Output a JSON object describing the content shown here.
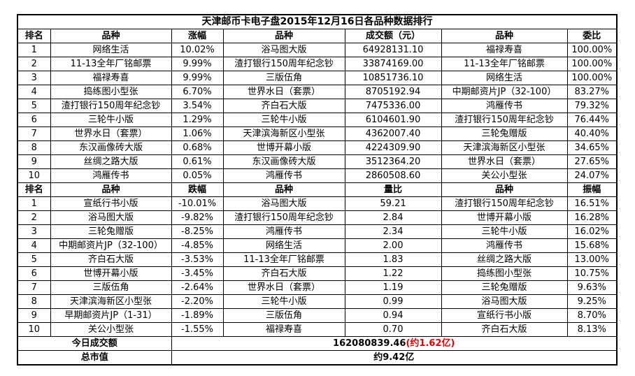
{
  "title": "天津邮币卡电子盘2015年12月16日各品种数据排行",
  "top": {
    "header": [
      "排名",
      "品种",
      "涨幅",
      "品种",
      "成交额（元）",
      "品种",
      "委比"
    ],
    "rows": [
      [
        "1",
        "网络生活",
        "10.02%",
        "浴马图大版",
        "64928131.10",
        "福禄寿喜",
        "100.00%"
      ],
      [
        "2",
        "11-13全年厂铭邮票",
        "9.99%",
        "渣打银行150周年纪念钞",
        "33874169.00",
        "11-13全年厂铭邮票",
        "100.00%"
      ],
      [
        "3",
        "福禄寿喜",
        "9.99%",
        "三版伍角",
        "10851736.10",
        "网络生活",
        "100.00%"
      ],
      [
        "4",
        "捣练图小型张",
        "6.70%",
        "世界水日（套票）",
        "8705192.94",
        "中期邮资片JP（32-100）",
        "83.27%"
      ],
      [
        "5",
        "渣打银行150周年纪念钞",
        "3.54%",
        "齐白石大版",
        "7475336.00",
        "鸿雁传书",
        "79.32%"
      ],
      [
        "6",
        "三轮牛小版",
        "1.29%",
        "三轮牛小版",
        "6104601.90",
        "渣打银行150周年纪念钞",
        "76.44%"
      ],
      [
        "7",
        "世界水日（套票）",
        "1.06%",
        "天津滨海新区小型张",
        "4362007.40",
        "三轮兔赠版",
        "40.40%"
      ],
      [
        "8",
        "东汉画像砖大版",
        "0.68%",
        "世博开幕小版",
        "4224309.90",
        "天津滨海新区小型张",
        "34.65%"
      ],
      [
        "9",
        "丝绸之路大版",
        "0.61%",
        "东汉画像砖大版",
        "3512364.20",
        "世界水日（套票）",
        "27.65%"
      ],
      [
        "10",
        "鸿雁传书",
        "0.05%",
        "鸿雁传书",
        "2860508.60",
        "关公小型张",
        "24.07%"
      ]
    ]
  },
  "bottom": {
    "header": [
      "排名",
      "品种",
      "跌幅",
      "品种",
      "量比",
      "品种",
      "振幅"
    ],
    "rows": [
      [
        "1",
        "宣纸行书小版",
        "-10.01%",
        "浴马图大版",
        "59.21",
        "渣打银行150周年纪念钞",
        "16.51%"
      ],
      [
        "2",
        "浴马图大版",
        "-9.82%",
        "渣打银行150周年纪念钞",
        "2.84",
        "世博开幕小版",
        "16.28%"
      ],
      [
        "3",
        "三轮兔赠版",
        "-8.25%",
        "鸿雁传书",
        "2.34",
        "三轮牛小版",
        "16.02%"
      ],
      [
        "4",
        "中期邮资片JP（32-100）",
        "-4.85%",
        "网络生活",
        "2.00",
        "鸿雁传书",
        "15.68%"
      ],
      [
        "5",
        "齐白石大版",
        "-3.53%",
        "11-13全年厂铭邮票",
        "1.83",
        "丝绸之路大版",
        "13.00%"
      ],
      [
        "6",
        "世博开幕小版",
        "-3.45%",
        "齐白石大版",
        "1.22",
        "捣练图小型张",
        "10.75%"
      ],
      [
        "7",
        "三版伍角",
        "-2.64%",
        "世界水日（套票）",
        "1.19",
        "三轮兔赠版",
        "9.63%"
      ],
      [
        "8",
        "天津滨海新区小型张",
        "-2.20%",
        "三轮牛小版",
        "0.99",
        "浴马图大版",
        "9.25%"
      ],
      [
        "9",
        "早期邮资片JP（1-31）",
        "-1.89%",
        "三版伍角",
        "0.94",
        "宣纸行书小版",
        "8.70%"
      ],
      [
        "10",
        "关公小型张",
        "-1.55%",
        "福禄寿喜",
        "0.70",
        "齐白石大版",
        "8.13%"
      ]
    ]
  },
  "footer": {
    "turnover_label": "今日成交额",
    "turnover": "162080839.46",
    "turnover_note": "(约1.62亿)",
    "cap_label": "总市值",
    "cap": "约9.42亿"
  }
}
